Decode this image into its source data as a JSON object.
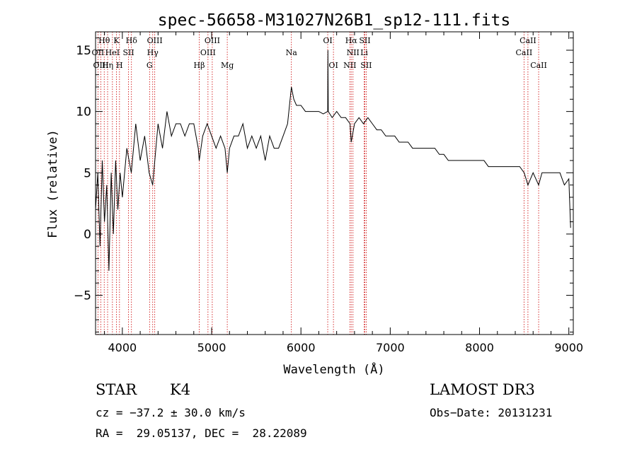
{
  "chart_data": {
    "type": "line",
    "title": "spec-56658-M31027N26B1_sp12-111.fits",
    "xlabel": "Wavelength (Å)",
    "ylabel": "Flux (relative)",
    "xlim": [
      3700,
      9050
    ],
    "ylim": [
      -8.2,
      16.5
    ],
    "xticks": [
      4000,
      5000,
      6000,
      7000,
      8000,
      9000
    ],
    "yticks": [
      -5,
      0,
      5,
      10,
      15
    ],
    "grid": false,
    "series": [
      {
        "name": "flux",
        "x": [
          3700,
          3725,
          3750,
          3775,
          3800,
          3825,
          3850,
          3875,
          3900,
          3925,
          3950,
          3975,
          4000,
          4050,
          4100,
          4150,
          4200,
          4250,
          4300,
          4340,
          4400,
          4450,
          4500,
          4550,
          4600,
          4650,
          4700,
          4750,
          4800,
          4850,
          4861,
          4900,
          4950,
          5000,
          5050,
          5100,
          5150,
          5175,
          5200,
          5250,
          5300,
          5350,
          5400,
          5450,
          5500,
          5550,
          5600,
          5650,
          5700,
          5750,
          5800,
          5850,
          5893,
          5920,
          5950,
          6000,
          6050,
          6100,
          6150,
          6200,
          6250,
          6300,
          6302,
          6306,
          6350,
          6400,
          6450,
          6500,
          6550,
          6563,
          6600,
          6650,
          6700,
          6750,
          6800,
          6850,
          6900,
          6950,
          7000,
          7050,
          7100,
          7150,
          7200,
          7250,
          7300,
          7350,
          7400,
          7450,
          7500,
          7550,
          7600,
          7650,
          7700,
          7750,
          7800,
          7850,
          7900,
          7950,
          8000,
          8050,
          8100,
          8150,
          8200,
          8250,
          8300,
          8350,
          8400,
          8450,
          8500,
          8542,
          8600,
          8662,
          8700,
          8750,
          8800,
          8850,
          8900,
          8950,
          9000,
          9020
        ],
        "y": [
          2,
          5,
          -1,
          6,
          1,
          4,
          -3,
          5,
          0,
          6,
          2,
          5,
          3,
          7,
          5,
          9,
          6,
          8,
          5,
          4,
          9,
          7,
          10,
          8,
          9,
          9,
          8,
          9,
          9,
          7,
          6,
          8,
          9,
          8,
          7,
          8,
          7,
          5,
          7,
          8,
          8,
          9,
          7,
          8,
          7,
          8,
          6,
          8,
          7,
          7,
          8,
          9,
          12,
          11,
          10.5,
          10.5,
          10,
          10,
          10,
          10,
          9.8,
          10,
          15,
          10,
          9.5,
          10,
          9.5,
          9.5,
          9,
          7.5,
          9,
          9.5,
          9,
          9.5,
          9,
          8.5,
          8.5,
          8,
          8,
          8,
          7.5,
          7.5,
          7.5,
          7,
          7,
          7,
          7,
          7,
          7,
          6.5,
          6.5,
          6,
          6,
          6,
          6,
          6,
          6,
          6,
          6,
          6,
          5.5,
          5.5,
          5.5,
          5.5,
          5.5,
          5.5,
          5.5,
          5.5,
          5,
          4,
          5,
          4,
          5,
          5,
          5,
          5,
          5,
          4,
          4.5,
          0.5
        ]
      }
    ],
    "lines": [
      {
        "name": "Hθ",
        "wl": 3797,
        "tier": 1
      },
      {
        "name": "OII",
        "wl": 3727,
        "tier": 2
      },
      {
        "name": "HeI",
        "wl": 3889,
        "tier": 2
      },
      {
        "name": "OIII",
        "wl": 3760,
        "tier": 3
      },
      {
        "name": "Hη",
        "wl": 3835,
        "tier": 3
      },
      {
        "name": "K",
        "wl": 3934,
        "tier": 1
      },
      {
        "name": "SII",
        "wl": 4069,
        "tier": 2
      },
      {
        "name": "H",
        "wl": 3968,
        "tier": 3
      },
      {
        "name": "Hδ",
        "wl": 4102,
        "tier": 1
      },
      {
        "name": "OIII",
        "wl": 4363,
        "tier": 1
      },
      {
        "name": "Hγ",
        "wl": 4340,
        "tier": 2
      },
      {
        "name": "G",
        "wl": 4305,
        "tier": 3
      },
      {
        "name": "Hβ",
        "wl": 4861,
        "tier": 3
      },
      {
        "name": "OIII",
        "wl": 5007,
        "tier": 1
      },
      {
        "name": "OIII",
        "wl": 4959,
        "tier": 2
      },
      {
        "name": "Mg",
        "wl": 5175,
        "tier": 3
      },
      {
        "name": "Na",
        "wl": 5893,
        "tier": 2
      },
      {
        "name": "OI",
        "wl": 6300,
        "tier": 1
      },
      {
        "name": "OI",
        "wl": 6364,
        "tier": 3
      },
      {
        "name": "Hα",
        "wl": 6563,
        "tier": 1
      },
      {
        "name": "NII",
        "wl": 6583,
        "tier": 2
      },
      {
        "name": "NII",
        "wl": 6548,
        "tier": 3
      },
      {
        "name": "SII",
        "wl": 6716,
        "tier": 1
      },
      {
        "name": "Li",
        "wl": 6708,
        "tier": 2
      },
      {
        "name": "SII",
        "wl": 6731,
        "tier": 3
      },
      {
        "name": "CaII",
        "wl": 8542,
        "tier": 1
      },
      {
        "name": "CaII",
        "wl": 8498,
        "tier": 2
      },
      {
        "name": "CaII",
        "wl": 8662,
        "tier": 3
      }
    ]
  },
  "info": {
    "class": "STAR",
    "subclass": "K4",
    "cz": "cz = −37.2 ± 30.0 km/s",
    "radec": "RA =  29.05137, DEC =  28.22089",
    "survey": "LAMOST DR3",
    "obsdate": "Obs−Date: 20131231"
  },
  "colors": {
    "axis": "#000000",
    "spectrum": "#000000",
    "line_marker": "#cc0000"
  }
}
